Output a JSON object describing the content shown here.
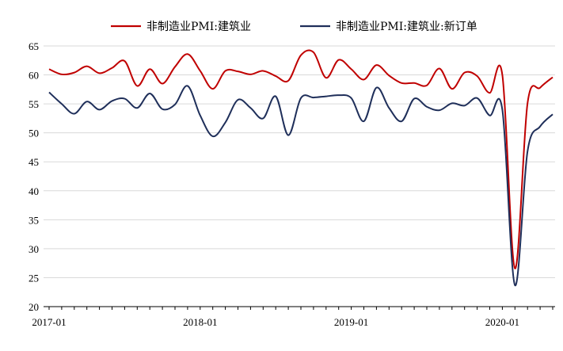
{
  "chart_data": {
    "type": "line",
    "title": "",
    "xlabel": "",
    "ylabel": "",
    "ylim": [
      20,
      65
    ],
    "yticks": [
      20,
      25,
      30,
      35,
      40,
      45,
      50,
      55,
      60,
      65
    ],
    "xtick_labels": [
      "2017-01",
      "2018-01",
      "2019-01",
      "2020-01"
    ],
    "grid": true,
    "legend_position": "top",
    "x": [
      "2017-01",
      "2017-02",
      "2017-03",
      "2017-04",
      "2017-05",
      "2017-06",
      "2017-07",
      "2017-08",
      "2017-09",
      "2017-10",
      "2017-11",
      "2017-12",
      "2018-01",
      "2018-02",
      "2018-03",
      "2018-04",
      "2018-05",
      "2018-06",
      "2018-07",
      "2018-08",
      "2018-09",
      "2018-10",
      "2018-11",
      "2018-12",
      "2019-01",
      "2019-02",
      "2019-03",
      "2019-04",
      "2019-05",
      "2019-06",
      "2019-07",
      "2019-08",
      "2019-09",
      "2019-10",
      "2019-11",
      "2019-12",
      "2020-01",
      "2020-02",
      "2020-03",
      "2020-04",
      "2020-05"
    ],
    "series": [
      {
        "name": "非制造业PMI:建筑业",
        "color": "#c00000",
        "values": [
          61.0,
          60.1,
          60.4,
          61.5,
          60.3,
          61.2,
          62.4,
          58.1,
          61.0,
          58.5,
          61.4,
          63.6,
          60.7,
          57.6,
          60.7,
          60.6,
          60.1,
          60.7,
          59.8,
          59.0,
          63.4,
          63.9,
          59.5,
          62.6,
          61.0,
          59.2,
          61.7,
          59.9,
          58.6,
          58.6,
          58.2,
          61.1,
          57.6,
          60.4,
          59.8,
          56.9,
          60.0,
          26.6,
          55.1,
          57.8,
          59.6
        ]
      },
      {
        "name": "非制造业PMI:建筑业:新订单",
        "color": "#1f2f5a",
        "values": [
          57.0,
          55.0,
          53.3,
          55.4,
          54.0,
          55.5,
          55.9,
          54.3,
          56.8,
          54.1,
          54.9,
          58.1,
          53.0,
          49.4,
          51.8,
          55.7,
          54.3,
          52.5,
          56.3,
          49.6,
          56.0,
          56.1,
          56.3,
          56.5,
          56.0,
          52.0,
          57.8,
          54.3,
          52.0,
          55.9,
          54.5,
          53.9,
          55.1,
          54.7,
          56.0,
          53.0,
          54.0,
          23.7,
          46.8,
          51.1,
          53.2
        ]
      }
    ]
  }
}
